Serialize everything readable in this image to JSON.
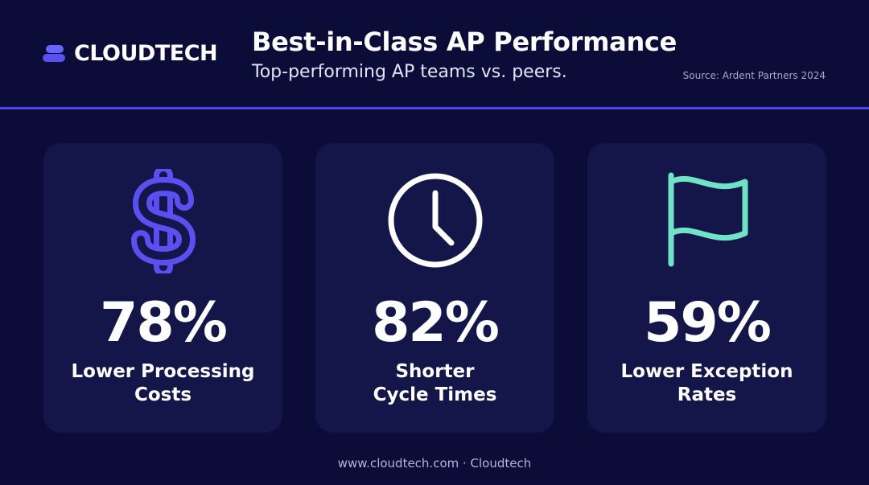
{
  "brand": {
    "name": "CLOUDTECH"
  },
  "header": {
    "title": "Best-in-Class AP Performance",
    "subtitle": "Top-performing AP teams vs. peers.",
    "source": "Source: Ardent Partners 2024"
  },
  "colors": {
    "background": "#0b0c37",
    "card": "#14164a",
    "accent_blue": "#5a4ff0",
    "accent_green": "#6fe3c6",
    "divider": "#4d46f0"
  },
  "stats": [
    {
      "icon": "dollar-icon",
      "value": "78%",
      "label_line1": "Lower Processing",
      "label_line2": "Costs"
    },
    {
      "icon": "clock-icon",
      "value": "82%",
      "label_line1": "Shorter",
      "label_line2": "Cycle Times"
    },
    {
      "icon": "flag-icon",
      "value": "59%",
      "label_line1": "Lower Exception",
      "label_line2": "Rates"
    }
  ],
  "footer": {
    "text": "www.cloudtech.com · Cloudtech"
  }
}
